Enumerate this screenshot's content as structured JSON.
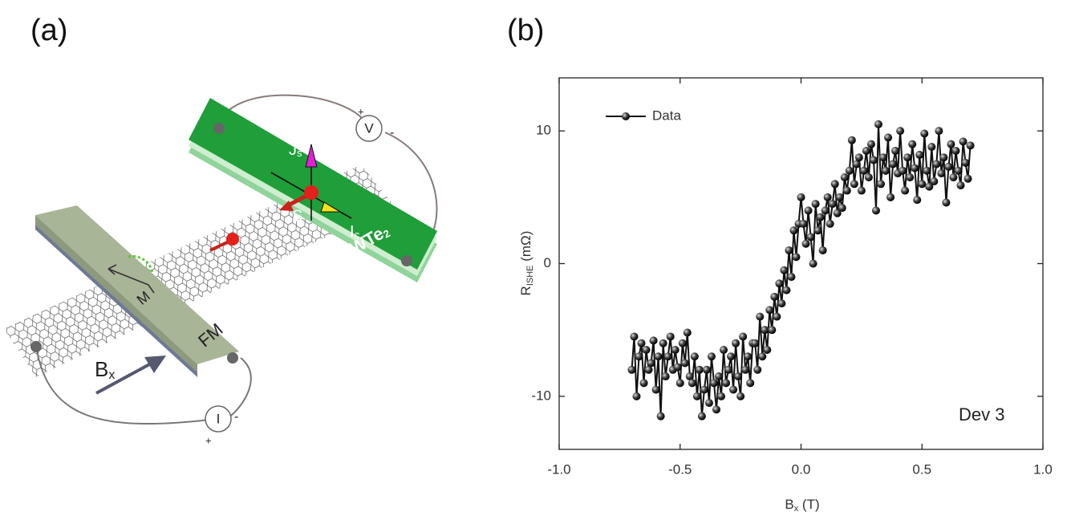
{
  "diagram": {
    "panel_label": "(a)",
    "wte2": [
      "WTe",
      "2"
    ],
    "fm": "FM",
    "m": "M",
    "bx": [
      "B",
      "x"
    ],
    "js": [
      "J",
      "s"
    ],
    "s": "S",
    "ic": [
      "I",
      "c"
    ],
    "voltmeter": "V",
    "ammeter": "I",
    "v_plus": "+",
    "v_minus": "-",
    "i_plus": "+",
    "i_minus": "-"
  },
  "chart_data": {
    "type": "line",
    "panel_label": "(b)",
    "x_label": [
      "B",
      "x",
      " (T)"
    ],
    "y_label": [
      "R",
      "ISHE",
      " (mΩ)"
    ],
    "annotation": "Dev 3",
    "xlim": [
      -1,
      1
    ],
    "xticks": [
      {
        "value": -1,
        "label": "-1.0"
      },
      -0.5,
      {
        "value": 0,
        "label": "0.0"
      },
      0.5,
      {
        "value": 1,
        "label": "1.0"
      }
    ],
    "ylim": [
      -14,
      14
    ],
    "yticks": [
      -10,
      0,
      10
    ],
    "legend": "upper left",
    "x": [
      -0.7,
      -0.69,
      -0.68,
      -0.67,
      -0.66,
      -0.65,
      -0.64,
      -0.63,
      -0.62,
      -0.61,
      -0.6,
      -0.59,
      -0.58,
      -0.57,
      -0.56,
      -0.55,
      -0.54,
      -0.53,
      -0.52,
      -0.51,
      -0.5,
      -0.49,
      -0.48,
      -0.47,
      -0.46,
      -0.45,
      -0.44,
      -0.43,
      -0.42,
      -0.41,
      -0.4,
      -0.39,
      -0.38,
      -0.37,
      -0.36,
      -0.35,
      -0.34,
      -0.33,
      -0.32,
      -0.31,
      -0.3,
      -0.29,
      -0.28,
      -0.27,
      -0.26,
      -0.25,
      -0.24,
      -0.23,
      -0.22,
      -0.21,
      -0.2,
      -0.19,
      -0.18,
      -0.17,
      -0.16,
      -0.15,
      -0.14,
      -0.13,
      -0.12,
      -0.11,
      -0.1,
      -0.09,
      -0.08,
      -0.07,
      -0.06,
      -0.05,
      -0.04,
      -0.03,
      -0.02,
      -0.01,
      0.0,
      0.01,
      0.02,
      0.03,
      0.04,
      0.05,
      0.06,
      0.07,
      0.08,
      0.09,
      0.1,
      0.11,
      0.12,
      0.13,
      0.14,
      0.15,
      0.16,
      0.17,
      0.18,
      0.19,
      0.2,
      0.21,
      0.22,
      0.23,
      0.24,
      0.25,
      0.26,
      0.27,
      0.28,
      0.29,
      0.3,
      0.31,
      0.32,
      0.33,
      0.34,
      0.35,
      0.36,
      0.37,
      0.38,
      0.39,
      0.4,
      0.41,
      0.42,
      0.43,
      0.44,
      0.45,
      0.46,
      0.47,
      0.48,
      0.49,
      0.5,
      0.51,
      0.52,
      0.53,
      0.54,
      0.55,
      0.56,
      0.57,
      0.58,
      0.59,
      0.6,
      0.61,
      0.62,
      0.63,
      0.64,
      0.65,
      0.66,
      0.67,
      0.68,
      0.69,
      0.7
    ],
    "series": [
      {
        "name": "Data",
        "color": "#111111",
        "values": [
          -8,
          -5.5,
          -10,
          -7,
          -6,
          -9,
          -6.5,
          -8,
          -7.5,
          -5.8,
          -9.5,
          -7,
          -11.5,
          -6,
          -8.5,
          -7,
          -5.5,
          -8,
          -6.5,
          -7.8,
          -9,
          -6,
          -7.5,
          -5.2,
          -8.5,
          -9,
          -7,
          -10,
          -8,
          -11.5,
          -9.5,
          -8,
          -10.5,
          -7,
          -9,
          -11,
          -8.5,
          -10,
          -6.5,
          -9,
          -8,
          -7,
          -9.5,
          -6,
          -8.5,
          -10,
          -5.5,
          -8,
          -7,
          -9,
          -6,
          -6,
          -8,
          -4,
          -7,
          -5,
          -6.5,
          -3.5,
          -5,
          -2.5,
          -4,
          -1.5,
          -3,
          -0.5,
          -2,
          1,
          -1,
          2.5,
          0.5,
          3,
          5,
          3,
          1.5,
          4,
          2,
          0,
          4.5,
          2.5,
          3.5,
          1,
          4,
          5,
          3,
          4.5,
          6,
          3.8,
          5,
          4.2,
          6.5,
          5.5,
          7,
          9.3,
          6,
          7.5,
          8,
          5.5,
          7,
          8.5,
          6.5,
          9,
          7.8,
          4,
          10.5,
          6,
          8,
          7,
          9.5,
          5,
          7.5,
          8.5,
          6.8,
          10,
          7,
          5.5,
          8,
          6.5,
          9,
          7.2,
          4.8,
          8.2,
          6,
          9.8,
          7,
          5.8,
          8.8,
          6.2,
          7.5,
          10,
          6.8,
          8,
          4.6,
          7.3,
          9,
          6.5,
          8.5,
          7,
          5.9,
          9.2,
          7.6,
          6.4,
          8.9
        ]
      }
    ]
  }
}
